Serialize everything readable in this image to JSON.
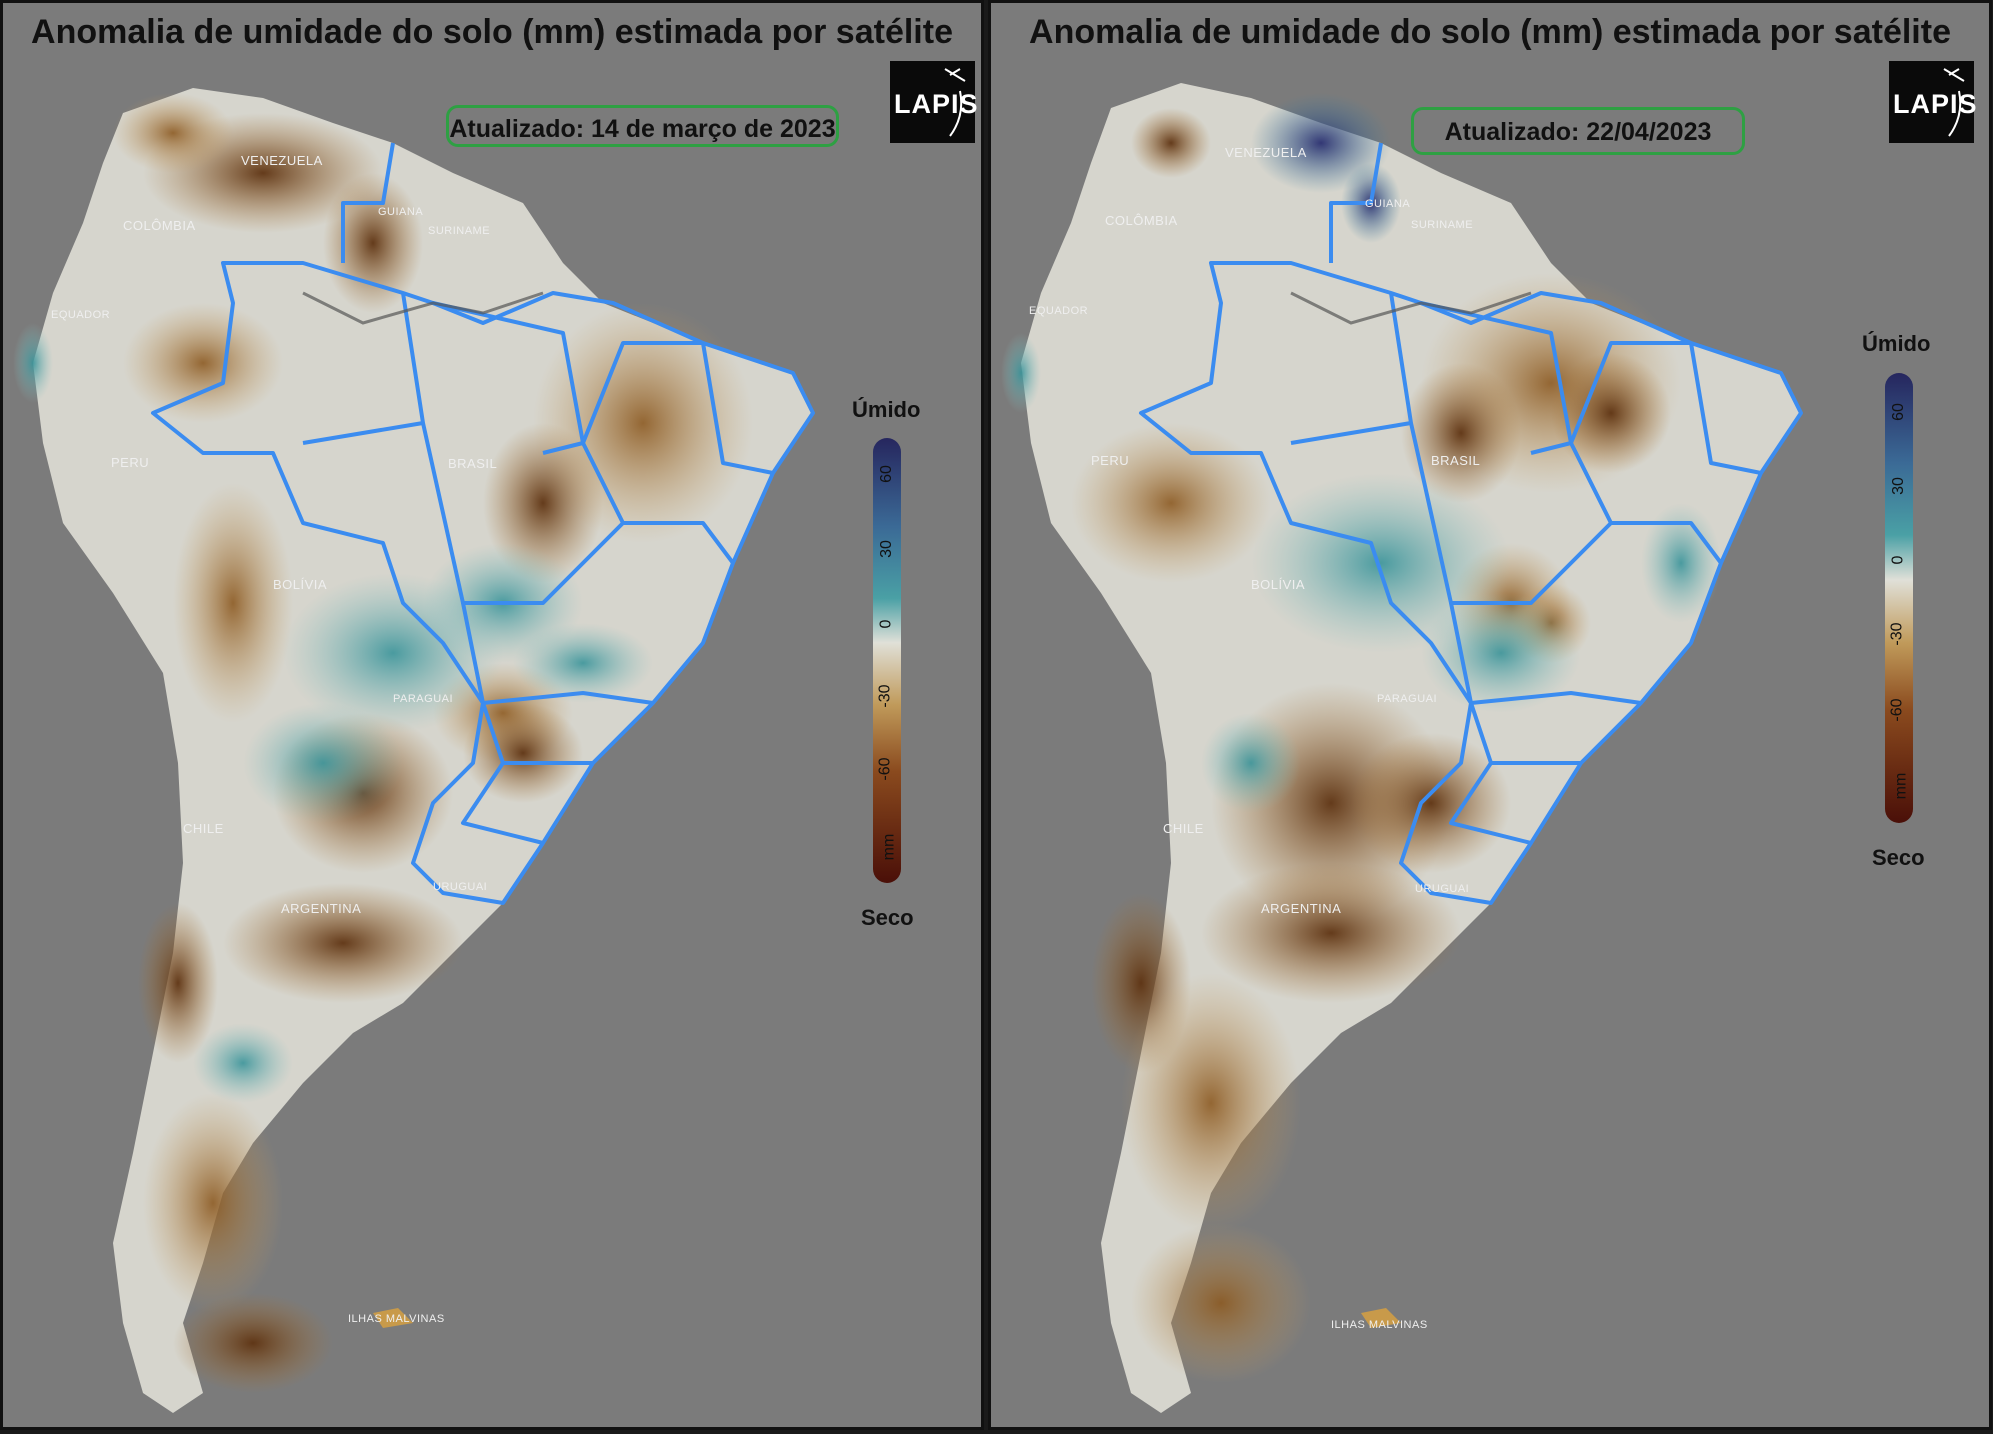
{
  "panels": [
    {
      "title": "Anomalia de umidade do solo (mm) estimada por satélite",
      "updated": "Atualizado: 14 de março de 2023",
      "logo": "LAPIS",
      "scale": {
        "top_label": "Úmido",
        "bottom_label": "Seco",
        "ticks": [
          "60",
          "30",
          "0",
          "-30",
          "-60",
          "mm"
        ]
      },
      "countries": {
        "venezuela": "VENEZUELA",
        "colombia": "COLÔMBIA",
        "guiana": "GUIANA",
        "suriname": "SURINAME",
        "equador": "EQUADOR",
        "peru": "PERU",
        "brasil": "BRASIL",
        "bolivia": "BOLÍVIA",
        "paraguai": "PARAGUAI",
        "chile": "CHILE",
        "argentina": "ARGENTINA",
        "uruguai": "URUGUAI",
        "malvinas": "ILHAS MALVINAS"
      }
    },
    {
      "title": "Anomalia de umidade do solo (mm) estimada por satélite",
      "updated": "Atualizado: 22/04/2023",
      "logo": "LAPIS",
      "scale": {
        "top_label": "Úmido",
        "bottom_label": "Seco",
        "ticks": [
          "60",
          "30",
          "0",
          "-30",
          "-60",
          "mm"
        ]
      },
      "countries": {
        "venezuela": "VENEZUELA",
        "colombia": "COLÔMBIA",
        "guiana": "GUIANA",
        "suriname": "SURINAME",
        "equador": "EQUADOR",
        "peru": "PERU",
        "brasil": "BRASIL",
        "bolivia": "BOLÍVIA",
        "paraguai": "PARAGUAI",
        "chile": "CHILE",
        "argentina": "ARGENTINA",
        "uruguai": "URUGUAI",
        "malvinas": "ILHAS MALVINAS"
      }
    }
  ],
  "colors": {
    "wet": "#2b2f6e",
    "moist": "#3a8f94",
    "neutral": "#d8d8d0",
    "dry": "#b07a2a",
    "very_dry": "#5a1a0e",
    "background": "#7b7b7b",
    "state_borders": "#3b8cf0",
    "updated_box_border": "#2ea043"
  }
}
